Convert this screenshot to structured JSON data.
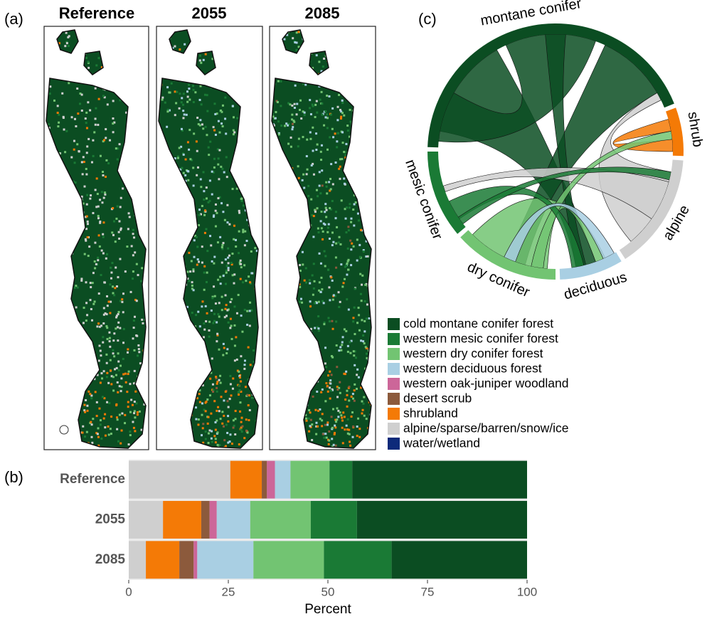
{
  "panel_labels": [
    "(a)",
    "(b)",
    "(c)"
  ],
  "maps": {
    "titles": [
      "Reference",
      "2055",
      "2085"
    ]
  },
  "chord": {
    "groups": [
      {
        "label": "montane conifer",
        "color": "#0b4d22"
      },
      {
        "label": "shrub",
        "color": "#f47a06"
      },
      {
        "label": "alpine",
        "color": "#cfcfcf"
      },
      {
        "label": "deciduous",
        "color": "#a9cfe3"
      },
      {
        "label": "dry conifer",
        "color": "#72c472"
      },
      {
        "label": "mesic conifer",
        "color": "#1a7a35"
      }
    ]
  },
  "chart_data": {
    "type": "bar",
    "orientation": "horizontal",
    "stacked": true,
    "categories": [
      "Reference",
      "2055",
      "2085"
    ],
    "series": [
      {
        "name": "cold montane conifer forest",
        "color": "#0b4d22",
        "values": [
          43.9,
          42.7,
          34.0
        ]
      },
      {
        "name": "western mesic conifer forest",
        "color": "#1a7a35",
        "values": [
          5.7,
          11.6,
          17.0
        ]
      },
      {
        "name": "western dry conifer forest",
        "color": "#72c472",
        "values": [
          9.8,
          15.2,
          17.7
        ]
      },
      {
        "name": "western deciduous forest",
        "color": "#a9cfe3",
        "values": [
          3.9,
          8.4,
          14.1
        ]
      },
      {
        "name": "western oak-juniper woodland",
        "color": "#cc6699",
        "values": [
          2.0,
          1.8,
          0.9
        ]
      },
      {
        "name": "desert scrub",
        "color": "#8c5a3c",
        "values": [
          1.3,
          2.1,
          3.6
        ]
      },
      {
        "name": "shrubland",
        "color": "#f47a06",
        "values": [
          7.9,
          9.6,
          8.4
        ]
      },
      {
        "name": "alpine/sparse/barren/snow/ice",
        "color": "#cfcfcf",
        "values": [
          25.5,
          8.6,
          4.3
        ]
      },
      {
        "name": "water/wetland",
        "color": "#0d2a7a",
        "values": [
          0,
          0,
          0
        ]
      }
    ],
    "xlabel": "Percent",
    "xlim": [
      0,
      100
    ],
    "xticks": [
      0,
      25,
      50,
      75,
      100
    ]
  }
}
